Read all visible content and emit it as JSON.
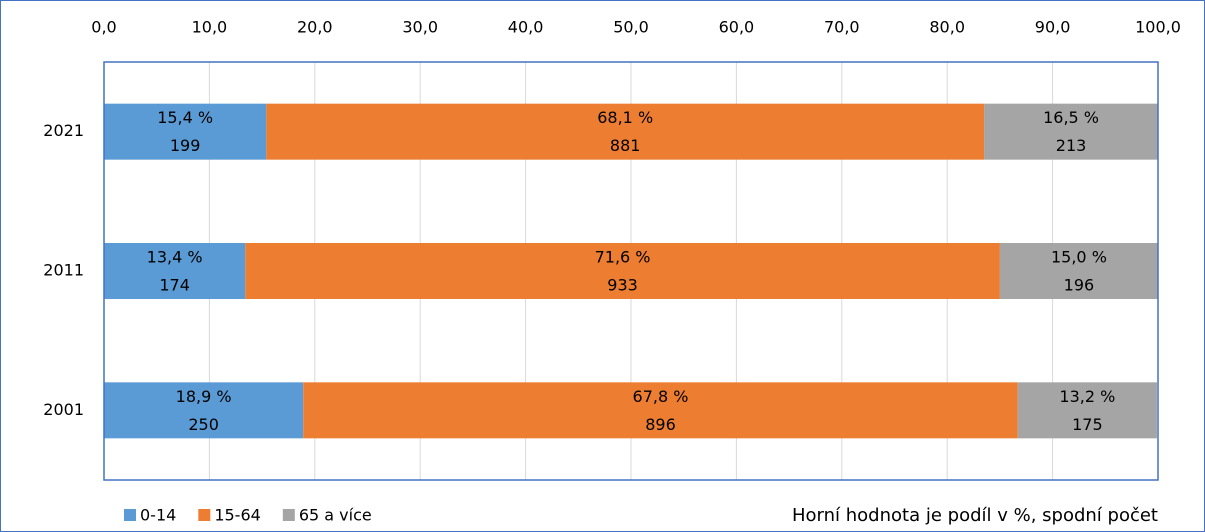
{
  "chart_data": {
    "type": "stacked-barh",
    "categories": [
      "2021",
      "2011",
      "2001"
    ],
    "series": [
      {
        "name": "0-14",
        "color": "#5b9bd5",
        "values": [
          15.4,
          13.4,
          18.9
        ],
        "value_labels": [
          "15,4 %",
          "13,4 %",
          "18,9 %"
        ],
        "counts": [
          199,
          174,
          250
        ]
      },
      {
        "name": "15-64",
        "color": "#ed7d31",
        "values": [
          68.1,
          71.6,
          67.8
        ],
        "value_labels": [
          "68,1 %",
          "71,6 %",
          "67,8 %"
        ],
        "counts": [
          881,
          933,
          896
        ]
      },
      {
        "name": "65 a více",
        "color": "#a5a5a5",
        "values": [
          16.5,
          15.0,
          13.2
        ],
        "value_labels": [
          "16,5 %",
          "15,0 %",
          "13,2 %"
        ],
        "counts": [
          213,
          196,
          175
        ]
      }
    ],
    "xlim": [
      0,
      100
    ],
    "xticks": [
      {
        "value": 0,
        "label": "0,0"
      },
      {
        "value": 10,
        "label": "10,0"
      },
      {
        "value": 20,
        "label": "20,0"
      },
      {
        "value": 30,
        "label": "30,0"
      },
      {
        "value": 40,
        "label": "40,0"
      },
      {
        "value": 50,
        "label": "50,0"
      },
      {
        "value": 60,
        "label": "60,0"
      },
      {
        "value": 70,
        "label": "70,0"
      },
      {
        "value": 80,
        "label": "80,0"
      },
      {
        "value": 90,
        "label": "90,0"
      },
      {
        "value": 100,
        "label": "100,0"
      }
    ],
    "grid": true,
    "legend": "bottom-left",
    "annotation": "Horní hodnota je podíl v %, spodní počet"
  }
}
